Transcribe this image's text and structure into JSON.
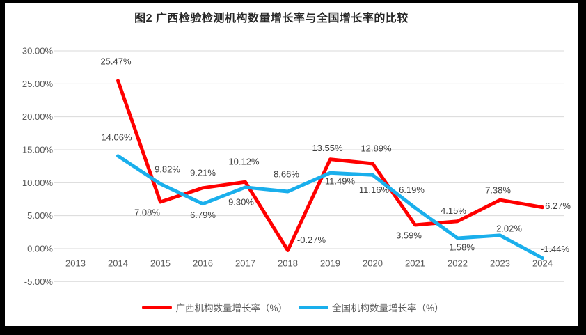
{
  "title": "图2 广西检验检测机构数量增长率与全国增长率的比较",
  "frame": {
    "border_color": "#000000",
    "background": "#ffffff"
  },
  "chart_data": {
    "type": "line",
    "x": [
      "2013",
      "2014",
      "2015",
      "2016",
      "2017",
      "2018",
      "2019",
      "2020",
      "2021",
      "2022",
      "2023",
      "2024"
    ],
    "y_tick_labels": [
      "30.00%",
      "25.00%",
      "20.00%",
      "15.00%",
      "10.00%",
      "5.00%",
      "0.00%",
      "-5.00%"
    ],
    "y_tick_values": [
      30,
      25,
      20,
      15,
      10,
      5,
      0,
      -5
    ],
    "ylim": [
      -5,
      30
    ],
    "grid": true,
    "gridline_color": "#d9d9d9",
    "axis_label_color": "#595959",
    "data_label_color": "#404040",
    "legend_position": "bottom",
    "series": [
      {
        "name": "广西机构数量增长率（%）",
        "color": "#FF0000",
        "values": [
          null,
          25.47,
          7.08,
          9.21,
          10.12,
          -0.27,
          13.55,
          12.89,
          3.59,
          4.15,
          7.38,
          6.27
        ],
        "labels": [
          "",
          "25.47%",
          "7.08%",
          "9.21%",
          "10.12%",
          "-0.27%",
          "13.55%",
          "12.89%",
          "3.59%",
          "4.15%",
          "7.38%",
          "6.27%"
        ],
        "label_offsets": [
          [
            0,
            0
          ],
          [
            -3,
            -28
          ],
          [
            -19,
            15
          ],
          [
            0,
            -22
          ],
          [
            -2,
            -29
          ],
          [
            34,
            -15
          ],
          [
            -4,
            -16
          ],
          [
            5,
            -22
          ],
          [
            -9,
            15
          ],
          [
            -6,
            -15
          ],
          [
            -3,
            -14
          ],
          [
            22,
            -2
          ]
        ]
      },
      {
        "name": "全国机构数量增长率（%）",
        "color": "#1AAFEC",
        "values": [
          null,
          14.06,
          9.82,
          6.79,
          9.3,
          8.66,
          11.49,
          11.16,
          6.19,
          1.58,
          2.02,
          -1.44
        ],
        "labels": [
          "",
          "14.06%",
          "9.82%",
          "6.79%",
          "9.30%",
          "8.66%",
          "11.49%",
          "11.16%",
          "6.19%",
          "1.58%",
          "2.02%",
          "-1.44%"
        ],
        "label_offsets": [
          [
            0,
            0
          ],
          [
            -2,
            -27
          ],
          [
            10,
            -21
          ],
          [
            0,
            16
          ],
          [
            -6,
            21
          ],
          [
            -2,
            -25
          ],
          [
            14,
            12
          ],
          [
            2,
            21
          ],
          [
            -5,
            -26
          ],
          [
            6,
            13
          ],
          [
            13,
            -10
          ],
          [
            18,
            -13
          ]
        ]
      }
    ]
  }
}
